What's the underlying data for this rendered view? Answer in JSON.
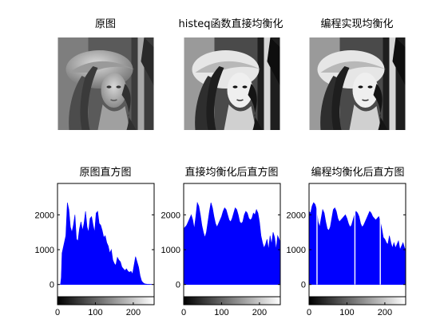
{
  "figure": {
    "titles": {
      "original": "原图",
      "histeq": "histeq函数直接均衡化",
      "custom": "编程实现均衡化",
      "hist_original": "原图直方图",
      "hist_histeq": "直接均衡化后直方图",
      "hist_custom": "编程均衡化后直方图"
    }
  },
  "chart_data": [
    {
      "type": "bar",
      "title": "原图直方图",
      "xlabel": "",
      "ylabel": "",
      "xlim": [
        0,
        255
      ],
      "ylim": [
        -350,
        2900
      ],
      "xticks": [
        0,
        100,
        200
      ],
      "yticks": [
        0,
        1000,
        2000
      ],
      "color": "#0000ff",
      "colorbar": "grayscale 0-255 under x axis",
      "points": [
        [
          0,
          0
        ],
        [
          8,
          0
        ],
        [
          10,
          200
        ],
        [
          12,
          900
        ],
        [
          15,
          1050
        ],
        [
          18,
          1200
        ],
        [
          22,
          1400
        ],
        [
          26,
          2350
        ],
        [
          30,
          2150
        ],
        [
          34,
          1650
        ],
        [
          38,
          1500
        ],
        [
          42,
          1700
        ],
        [
          46,
          2000
        ],
        [
          50,
          1300
        ],
        [
          54,
          1250
        ],
        [
          58,
          1600
        ],
        [
          62,
          1800
        ],
        [
          66,
          1550
        ],
        [
          70,
          1750
        ],
        [
          74,
          2100
        ],
        [
          78,
          1650
        ],
        [
          82,
          1500
        ],
        [
          86,
          1900
        ],
        [
          90,
          1950
        ],
        [
          94,
          1700
        ],
        [
          98,
          1500
        ],
        [
          102,
          2050
        ],
        [
          106,
          2100
        ],
        [
          110,
          1750
        ],
        [
          114,
          1700
        ],
        [
          118,
          1550
        ],
        [
          122,
          1350
        ],
        [
          126,
          1400
        ],
        [
          130,
          1200
        ],
        [
          134,
          1100
        ],
        [
          138,
          900
        ],
        [
          142,
          1000
        ],
        [
          146,
          700
        ],
        [
          150,
          600
        ],
        [
          154,
          550
        ],
        [
          158,
          780
        ],
        [
          162,
          700
        ],
        [
          166,
          650
        ],
        [
          170,
          500
        ],
        [
          174,
          450
        ],
        [
          178,
          400
        ],
        [
          182,
          450
        ],
        [
          186,
          380
        ],
        [
          190,
          350
        ],
        [
          194,
          380
        ],
        [
          198,
          300
        ],
        [
          202,
          550
        ],
        [
          206,
          800
        ],
        [
          210,
          650
        ],
        [
          214,
          500
        ],
        [
          218,
          250
        ],
        [
          222,
          100
        ],
        [
          226,
          50
        ],
        [
          230,
          20
        ],
        [
          236,
          10
        ],
        [
          255,
          0
        ]
      ]
    },
    {
      "type": "bar",
      "title": "直接均衡化后直方图",
      "xlabel": "",
      "ylabel": "",
      "xlim": [
        0,
        255
      ],
      "ylim": [
        -350,
        2900
      ],
      "xticks": [
        0,
        100,
        200
      ],
      "yticks": [
        0,
        1000,
        2000
      ],
      "color": "#0000ff",
      "colorbar": "grayscale 0-255 under x axis",
      "points": [
        [
          0,
          1600
        ],
        [
          4,
          1650
        ],
        [
          8,
          1700
        ],
        [
          12,
          1800
        ],
        [
          16,
          1900
        ],
        [
          20,
          2000
        ],
        [
          24,
          1850
        ],
        [
          28,
          1600
        ],
        [
          32,
          1950
        ],
        [
          36,
          2350
        ],
        [
          40,
          2250
        ],
        [
          44,
          2000
        ],
        [
          48,
          1700
        ],
        [
          52,
          1500
        ],
        [
          56,
          1350
        ],
        [
          60,
          1500
        ],
        [
          64,
          1800
        ],
        [
          68,
          2100
        ],
        [
          72,
          2350
        ],
        [
          76,
          2200
        ],
        [
          80,
          1950
        ],
        [
          84,
          1750
        ],
        [
          88,
          1650
        ],
        [
          92,
          1750
        ],
        [
          96,
          1850
        ],
        [
          100,
          1950
        ],
        [
          104,
          2100
        ],
        [
          108,
          2200
        ],
        [
          112,
          2150
        ],
        [
          116,
          2000
        ],
        [
          120,
          1850
        ],
        [
          124,
          1800
        ],
        [
          128,
          1900
        ],
        [
          132,
          2050
        ],
        [
          136,
          2200
        ],
        [
          140,
          2150
        ],
        [
          144,
          2000
        ],
        [
          148,
          1800
        ],
        [
          152,
          1750
        ],
        [
          156,
          1800
        ],
        [
          160,
          2000
        ],
        [
          164,
          2100
        ],
        [
          168,
          2050
        ],
        [
          172,
          1900
        ],
        [
          176,
          1850
        ],
        [
          180,
          1900
        ],
        [
          184,
          2050
        ],
        [
          188,
          2000
        ],
        [
          192,
          2150
        ],
        [
          196,
          2050
        ],
        [
          200,
          1800
        ],
        [
          204,
          1400
        ],
        [
          208,
          1200
        ],
        [
          212,
          1050
        ],
        [
          216,
          1150
        ],
        [
          220,
          1300
        ],
        [
          224,
          1000
        ],
        [
          228,
          1400
        ],
        [
          232,
          1150
        ],
        [
          236,
          1500
        ],
        [
          240,
          1350
        ],
        [
          244,
          1000
        ],
        [
          248,
          1400
        ],
        [
          252,
          1300
        ],
        [
          255,
          1200
        ]
      ]
    },
    {
      "type": "bar",
      "title": "编程均衡化后直方图",
      "xlabel": "",
      "ylabel": "",
      "xlim": [
        0,
        255
      ],
      "ylim": [
        -350,
        2900
      ],
      "xticks": [
        0,
        100,
        200
      ],
      "yticks": [
        0,
        1000,
        2000
      ],
      "color": "#0000ff",
      "colorbar": "grayscale 0-255 under x axis",
      "points": [
        [
          0,
          2100
        ],
        [
          4,
          2050
        ],
        [
          8,
          2250
        ],
        [
          12,
          2350
        ],
        [
          16,
          2300
        ],
        [
          20,
          2150
        ],
        [
          24,
          1800
        ],
        [
          28,
          1650
        ],
        [
          32,
          1900
        ],
        [
          36,
          2150
        ],
        [
          40,
          2050
        ],
        [
          44,
          1800
        ],
        [
          48,
          1600
        ],
        [
          52,
          1550
        ],
        [
          56,
          1650
        ],
        [
          60,
          1900
        ],
        [
          64,
          2150
        ],
        [
          68,
          2200
        ],
        [
          72,
          2100
        ],
        [
          76,
          1900
        ],
        [
          80,
          1800
        ],
        [
          84,
          1850
        ],
        [
          88,
          1900
        ],
        [
          92,
          1950
        ],
        [
          96,
          2000
        ],
        [
          100,
          1900
        ],
        [
          104,
          1750
        ],
        [
          108,
          1650
        ],
        [
          112,
          1700
        ],
        [
          116,
          1850
        ],
        [
          120,
          2000
        ],
        [
          124,
          2100
        ],
        [
          128,
          2050
        ],
        [
          132,
          1950
        ],
        [
          136,
          1750
        ],
        [
          140,
          1650
        ],
        [
          144,
          1700
        ],
        [
          148,
          1800
        ],
        [
          152,
          1900
        ],
        [
          156,
          2000
        ],
        [
          160,
          2100
        ],
        [
          164,
          2050
        ],
        [
          168,
          1950
        ],
        [
          172,
          1900
        ],
        [
          176,
          1850
        ],
        [
          180,
          1900
        ],
        [
          184,
          1950
        ],
        [
          188,
          1800
        ],
        [
          192,
          1600
        ],
        [
          196,
          1350
        ],
        [
          200,
          1300
        ],
        [
          204,
          1200
        ],
        [
          208,
          1150
        ],
        [
          212,
          1400
        ],
        [
          216,
          1200
        ],
        [
          220,
          1050
        ],
        [
          224,
          1200
        ],
        [
          228,
          1050
        ],
        [
          232,
          1150
        ],
        [
          236,
          1250
        ],
        [
          240,
          1000
        ],
        [
          244,
          1100
        ],
        [
          248,
          1200
        ],
        [
          252,
          1050
        ],
        [
          255,
          1000
        ]
      ],
      "gaps": [
        21,
        121,
        188
      ]
    }
  ]
}
